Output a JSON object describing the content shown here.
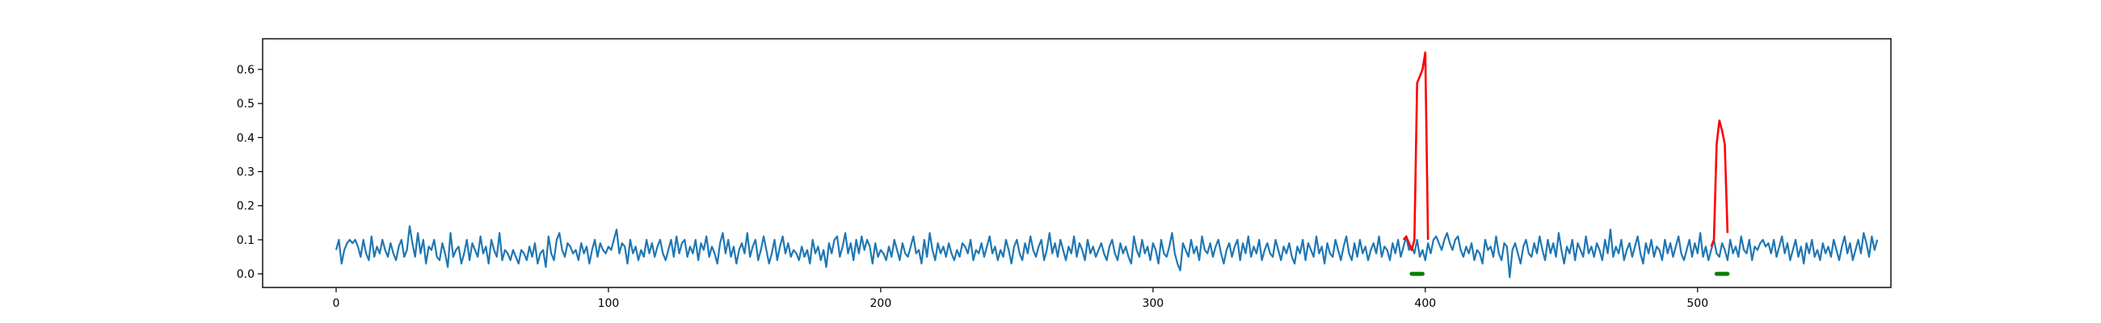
{
  "chart_data": {
    "type": "line",
    "title": "",
    "xlabel": "",
    "ylabel": "",
    "xlim": [
      -27,
      571
    ],
    "ylim": [
      -0.04,
      0.69
    ],
    "xticks": [
      0,
      100,
      200,
      300,
      400,
      500
    ],
    "yticks": [
      0.0,
      0.1,
      0.2,
      0.3,
      0.4,
      0.5,
      0.6
    ],
    "xtick_labels": [
      "0",
      "100",
      "200",
      "300",
      "400",
      "500"
    ],
    "ytick_labels": [
      "0.0",
      "0.1",
      "0.2",
      "0.3",
      "0.4",
      "0.5",
      "0.6"
    ],
    "grid": false,
    "legend": "none",
    "series": [
      {
        "role": "signal",
        "color": "#1f77b4",
        "x_start": 0,
        "values": [
          0.07,
          0.1,
          0.03,
          0.07,
          0.09,
          0.1,
          0.09,
          0.1,
          0.08,
          0.05,
          0.1,
          0.06,
          0.04,
          0.11,
          0.05,
          0.08,
          0.06,
          0.1,
          0.07,
          0.05,
          0.09,
          0.06,
          0.04,
          0.08,
          0.1,
          0.05,
          0.07,
          0.14,
          0.09,
          0.05,
          0.12,
          0.06,
          0.1,
          0.03,
          0.08,
          0.07,
          0.1,
          0.05,
          0.04,
          0.09,
          0.06,
          0.02,
          0.12,
          0.05,
          0.07,
          0.08,
          0.03,
          0.06,
          0.1,
          0.04,
          0.09,
          0.07,
          0.05,
          0.11,
          0.06,
          0.08,
          0.03,
          0.1,
          0.07,
          0.05,
          0.12,
          0.04,
          0.07,
          0.06,
          0.04,
          0.07,
          0.05,
          0.03,
          0.07,
          0.06,
          0.04,
          0.08,
          0.05,
          0.09,
          0.03,
          0.06,
          0.07,
          0.02,
          0.11,
          0.06,
          0.04,
          0.1,
          0.12,
          0.07,
          0.05,
          0.09,
          0.08,
          0.06,
          0.07,
          0.04,
          0.09,
          0.06,
          0.08,
          0.03,
          0.07,
          0.1,
          0.05,
          0.09,
          0.07,
          0.06,
          0.08,
          0.07,
          0.1,
          0.13,
          0.06,
          0.09,
          0.08,
          0.03,
          0.1,
          0.06,
          0.08,
          0.04,
          0.07,
          0.05,
          0.1,
          0.06,
          0.09,
          0.05,
          0.08,
          0.1,
          0.06,
          0.04,
          0.07,
          0.1,
          0.05,
          0.11,
          0.06,
          0.09,
          0.1,
          0.05,
          0.08,
          0.06,
          0.1,
          0.04,
          0.09,
          0.07,
          0.11,
          0.05,
          0.08,
          0.06,
          0.03,
          0.09,
          0.12,
          0.06,
          0.1,
          0.05,
          0.08,
          0.03,
          0.07,
          0.09,
          0.06,
          0.12,
          0.05,
          0.08,
          0.1,
          0.04,
          0.07,
          0.11,
          0.07,
          0.03,
          0.06,
          0.1,
          0.04,
          0.08,
          0.11,
          0.06,
          0.09,
          0.05,
          0.07,
          0.06,
          0.04,
          0.08,
          0.05,
          0.07,
          0.03,
          0.1,
          0.06,
          0.08,
          0.04,
          0.07,
          0.02,
          0.09,
          0.06,
          0.1,
          0.11,
          0.05,
          0.08,
          0.12,
          0.06,
          0.09,
          0.04,
          0.1,
          0.06,
          0.11,
          0.07,
          0.1,
          0.08,
          0.03,
          0.09,
          0.05,
          0.07,
          0.06,
          0.04,
          0.08,
          0.05,
          0.1,
          0.07,
          0.04,
          0.09,
          0.06,
          0.05,
          0.08,
          0.11,
          0.06,
          0.07,
          0.03,
          0.1,
          0.05,
          0.12,
          0.07,
          0.04,
          0.09,
          0.06,
          0.08,
          0.05,
          0.09,
          0.06,
          0.04,
          0.07,
          0.05,
          0.09,
          0.08,
          0.06,
          0.1,
          0.04,
          0.07,
          0.06,
          0.09,
          0.05,
          0.08,
          0.11,
          0.06,
          0.08,
          0.04,
          0.07,
          0.05,
          0.1,
          0.07,
          0.03,
          0.08,
          0.1,
          0.06,
          0.04,
          0.09,
          0.06,
          0.11,
          0.07,
          0.05,
          0.08,
          0.1,
          0.04,
          0.07,
          0.12,
          0.06,
          0.09,
          0.05,
          0.1,
          0.07,
          0.04,
          0.08,
          0.06,
          0.11,
          0.05,
          0.09,
          0.07,
          0.04,
          0.1,
          0.06,
          0.08,
          0.05,
          0.07,
          0.09,
          0.06,
          0.04,
          0.08,
          0.1,
          0.06,
          0.04,
          0.09,
          0.06,
          0.08,
          0.05,
          0.03,
          0.11,
          0.07,
          0.05,
          0.1,
          0.06,
          0.08,
          0.04,
          0.09,
          0.07,
          0.03,
          0.1,
          0.06,
          0.05,
          0.08,
          0.12,
          0.06,
          0.03,
          0.01,
          0.09,
          0.07,
          0.05,
          0.1,
          0.06,
          0.08,
          0.04,
          0.11,
          0.07,
          0.06,
          0.09,
          0.05,
          0.08,
          0.1,
          0.06,
          0.03,
          0.07,
          0.09,
          0.05,
          0.08,
          0.1,
          0.04,
          0.09,
          0.06,
          0.11,
          0.05,
          0.08,
          0.06,
          0.1,
          0.04,
          0.07,
          0.09,
          0.06,
          0.05,
          0.1,
          0.07,
          0.04,
          0.08,
          0.06,
          0.09,
          0.05,
          0.03,
          0.08,
          0.06,
          0.1,
          0.04,
          0.09,
          0.07,
          0.05,
          0.11,
          0.06,
          0.08,
          0.03,
          0.09,
          0.06,
          0.05,
          0.1,
          0.07,
          0.04,
          0.08,
          0.11,
          0.06,
          0.04,
          0.09,
          0.05,
          0.1,
          0.06,
          0.08,
          0.04,
          0.07,
          0.09,
          0.06,
          0.11,
          0.05,
          0.08,
          0.07,
          0.04,
          0.09,
          0.06,
          0.1,
          0.05,
          0.08,
          0.11,
          0.07,
          0.08,
          0.06,
          0.1,
          0.05,
          0.07,
          0.04,
          0.09,
          0.06,
          0.1,
          0.11,
          0.09,
          0.07,
          0.1,
          0.12,
          0.09,
          0.07,
          0.1,
          0.11,
          0.07,
          0.05,
          0.08,
          0.06,
          0.09,
          0.04,
          0.07,
          0.06,
          0.03,
          0.1,
          0.07,
          0.08,
          0.05,
          0.11,
          0.06,
          0.04,
          0.09,
          0.08,
          -0.01,
          0.07,
          0.09,
          0.06,
          0.03,
          0.08,
          0.1,
          0.06,
          0.05,
          0.09,
          0.06,
          0.11,
          0.07,
          0.04,
          0.1,
          0.06,
          0.09,
          0.05,
          0.12,
          0.07,
          0.03,
          0.08,
          0.06,
          0.1,
          0.04,
          0.09,
          0.07,
          0.05,
          0.11,
          0.06,
          0.08,
          0.05,
          0.09,
          0.07,
          0.04,
          0.1,
          0.06,
          0.13,
          0.05,
          0.08,
          0.06,
          0.1,
          0.04,
          0.07,
          0.09,
          0.05,
          0.08,
          0.11,
          0.06,
          0.03,
          0.09,
          0.06,
          0.1,
          0.05,
          0.08,
          0.07,
          0.04,
          0.1,
          0.06,
          0.09,
          0.05,
          0.08,
          0.11,
          0.06,
          0.04,
          0.07,
          0.1,
          0.05,
          0.09,
          0.06,
          0.12,
          0.05,
          0.08,
          0.04,
          0.07,
          0.1,
          0.06,
          0.05,
          0.09,
          0.07,
          0.04,
          0.1,
          0.06,
          0.08,
          0.05,
          0.11,
          0.07,
          0.06,
          0.1,
          0.04,
          0.08,
          0.07,
          0.09,
          0.1,
          0.08,
          0.09,
          0.06,
          0.1,
          0.05,
          0.08,
          0.11,
          0.06,
          0.09,
          0.04,
          0.07,
          0.1,
          0.05,
          0.08,
          0.03,
          0.09,
          0.06,
          0.1,
          0.05,
          0.07,
          0.04,
          0.09,
          0.06,
          0.08,
          0.05,
          0.1,
          0.07,
          0.04,
          0.08,
          0.11,
          0.06,
          0.09,
          0.04,
          0.07,
          0.1,
          0.06,
          0.12,
          0.09,
          0.05,
          0.11,
          0.07,
          0.1
        ]
      },
      {
        "role": "anomaly",
        "color": "#ff0000",
        "segments": [
          {
            "x_start": 392,
            "values": [
              0.1,
              0.11,
              0.09,
              0.07,
              0.1,
              0.56,
              0.58,
              0.6,
              0.65,
              0.1
            ]
          },
          {
            "x_start": 505,
            "values": [
              0.08,
              0.1,
              0.38,
              0.45,
              0.42,
              0.38,
              0.12
            ]
          }
        ]
      },
      {
        "role": "marker",
        "color": "#008000",
        "segments": [
          {
            "x": [
              395,
              399
            ],
            "y": 0.0
          },
          {
            "x": [
              507,
              511
            ],
            "y": 0.0
          }
        ]
      }
    ]
  }
}
